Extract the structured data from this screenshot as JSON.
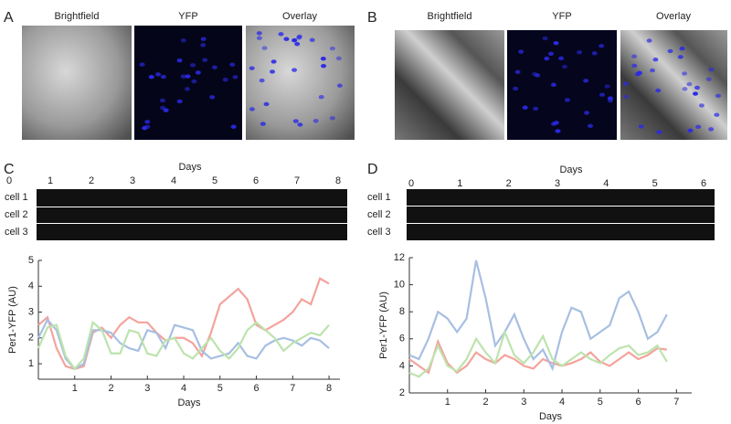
{
  "panels": {
    "a": {
      "label": "A",
      "images": [
        "Brightfield",
        "YFP",
        "Overlay"
      ]
    },
    "b": {
      "label": "B",
      "images": [
        "Brightfield",
        "YFP",
        "Overlay"
      ]
    },
    "c": {
      "label": "C",
      "strip_title": "Days",
      "strip_days": [
        0,
        1,
        2,
        3,
        4,
        5,
        6,
        7,
        8
      ],
      "cells": [
        "cell 1",
        "cell 2",
        "cell 3"
      ]
    },
    "d": {
      "label": "D",
      "strip_title": "Days",
      "strip_days": [
        0,
        1,
        2,
        3,
        4,
        5,
        6
      ],
      "cells": [
        "cell 1",
        "cell 2",
        "cell 3"
      ]
    }
  },
  "chart_data": [
    {
      "type": "line",
      "x_label": "Days",
      "y_label": "Per1-YFP (AU)",
      "x": [
        0,
        0.25,
        0.5,
        0.75,
        1,
        1.25,
        1.5,
        1.75,
        2,
        2.25,
        2.5,
        2.75,
        3,
        3.25,
        3.5,
        3.75,
        4,
        4.25,
        4.5,
        4.75,
        5,
        5.25,
        5.5,
        5.75,
        6,
        6.25,
        6.5,
        6.75,
        7,
        7.25,
        7.5,
        7.75,
        8
      ],
      "series": [
        {
          "name": "cell 1",
          "color": "#f4a39c",
          "values": [
            2.5,
            2.8,
            1.6,
            0.9,
            0.8,
            0.9,
            2.2,
            2.4,
            2.0,
            2.5,
            2.8,
            2.6,
            2.6,
            2.2,
            1.9,
            2.0,
            2.0,
            1.8,
            1.3,
            2.2,
            3.3,
            3.6,
            3.9,
            3.5,
            2.5,
            2.3,
            2.5,
            2.7,
            3.0,
            3.5,
            3.3,
            4.3,
            4.1
          ]
        },
        {
          "name": "cell 2",
          "color": "#a7bfe2",
          "values": [
            2.0,
            2.7,
            2.3,
            1.2,
            0.8,
            1.0,
            2.3,
            2.3,
            2.2,
            1.8,
            1.6,
            1.5,
            2.3,
            2.2,
            1.6,
            2.5,
            2.4,
            2.3,
            1.5,
            1.2,
            1.3,
            1.4,
            1.8,
            1.3,
            1.2,
            1.7,
            1.9,
            2.0,
            1.9,
            1.7,
            2.0,
            1.9,
            1.6
          ]
        },
        {
          "name": "cell 3",
          "color": "#bde3ad",
          "values": [
            1.6,
            2.4,
            2.5,
            1.3,
            0.8,
            1.2,
            2.6,
            2.3,
            1.4,
            1.4,
            2.3,
            2.2,
            1.4,
            1.3,
            1.9,
            2.0,
            1.4,
            1.2,
            1.6,
            2.0,
            1.5,
            1.2,
            1.6,
            2.3,
            2.6,
            2.3,
            2.0,
            1.5,
            1.8,
            2.0,
            2.2,
            2.1,
            2.5
          ]
        }
      ],
      "xlim": [
        0,
        8.3
      ],
      "xticks": [
        1,
        2,
        3,
        4,
        5,
        6,
        7,
        8
      ],
      "ylim": [
        0.4,
        5
      ],
      "yticks": [
        1,
        2,
        3,
        4,
        5
      ]
    },
    {
      "type": "line",
      "x_label": "Days",
      "y_label": "Per1-YFP (AU)",
      "x": [
        0,
        0.25,
        0.5,
        0.75,
        1,
        1.25,
        1.5,
        1.75,
        2,
        2.25,
        2.5,
        2.75,
        3,
        3.25,
        3.5,
        3.75,
        4,
        4.25,
        4.5,
        4.75,
        5,
        5.25,
        5.5,
        5.75,
        6,
        6.25,
        6.5,
        6.75
      ],
      "series": [
        {
          "name": "cell 1",
          "color": "#f4a39c",
          "values": [
            4.5,
            4.0,
            3.5,
            5.8,
            4.2,
            3.5,
            4.0,
            5.0,
            4.5,
            4.2,
            4.8,
            4.5,
            4.0,
            3.8,
            4.5,
            4.2,
            4.0,
            4.2,
            4.5,
            5.0,
            4.3,
            4.0,
            4.5,
            5.0,
            4.5,
            4.8,
            5.3,
            5.2
          ]
        },
        {
          "name": "cell 2",
          "color": "#a7bfe2",
          "values": [
            4.8,
            4.5,
            6.0,
            8.0,
            7.5,
            6.5,
            7.5,
            11.8,
            9.0,
            5.5,
            6.5,
            7.8,
            6.0,
            4.5,
            5.2,
            3.8,
            6.5,
            8.3,
            8.0,
            6.0,
            6.5,
            7.0,
            9.0,
            9.5,
            8.0,
            6.0,
            6.5,
            7.8
          ]
        },
        {
          "name": "cell 3",
          "color": "#bde3ad",
          "values": [
            3.5,
            3.2,
            3.8,
            5.5,
            4.0,
            3.6,
            4.5,
            6.0,
            5.0,
            4.2,
            6.5,
            4.8,
            4.2,
            5.0,
            6.2,
            4.5,
            4.0,
            4.5,
            5.0,
            4.5,
            4.2,
            4.8,
            5.3,
            5.5,
            4.8,
            5.0,
            5.5,
            4.3
          ]
        }
      ],
      "xlim": [
        0,
        7.4
      ],
      "xticks": [
        1,
        2,
        3,
        4,
        5,
        6,
        7
      ],
      "ylim": [
        2,
        12
      ],
      "yticks": [
        2,
        4,
        6,
        8,
        10,
        12
      ]
    }
  ]
}
